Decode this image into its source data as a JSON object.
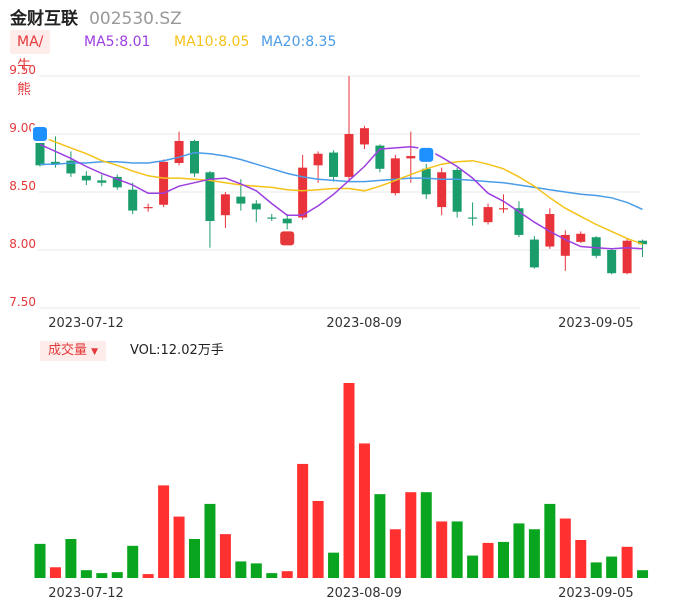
{
  "header": {
    "name": "金财互联",
    "code": "002530.SZ"
  },
  "ma_legend": {
    "tag": "MA/牛熊",
    "ma5": "MA5:8.01",
    "ma10": "MA10:8.05",
    "ma20": "MA20:8.35"
  },
  "volume_legend": {
    "tag": "成交量",
    "value": "VOL:12.02万手"
  },
  "colors": {
    "up": "#e8333a",
    "down": "#1a9c6b",
    "vol_up": "#ff3030",
    "vol_down": "#0aa51f",
    "ma5": "#9d3fe0",
    "ma10": "#f5c218",
    "ma20": "#4a9ce8",
    "grid": "#e8e8e8",
    "ylabel": "#e5383b"
  },
  "chart_data": [
    {
      "type": "candlestick",
      "y_ticks": [
        "9.50",
        "9.00",
        "8.50",
        "8.00",
        "7.50"
      ],
      "ylim": [
        7.5,
        9.5
      ],
      "x_tick_labels": [
        "2023-07-12",
        "2023-08-09",
        "2023-09-05"
      ],
      "x_tick_indices": [
        0,
        18,
        33
      ],
      "ohlc": [
        [
          8.93,
          8.95,
          8.72,
          8.73
        ],
        [
          8.76,
          8.98,
          8.71,
          8.74
        ],
        [
          8.77,
          8.85,
          8.63,
          8.66
        ],
        [
          8.64,
          8.68,
          8.56,
          8.6
        ],
        [
          8.6,
          8.65,
          8.55,
          8.58
        ],
        [
          8.63,
          8.65,
          8.52,
          8.54
        ],
        [
          8.52,
          8.58,
          8.31,
          8.34
        ],
        [
          8.36,
          8.4,
          8.33,
          8.37
        ],
        [
          8.39,
          8.78,
          8.37,
          8.76
        ],
        [
          8.75,
          9.02,
          8.73,
          8.94
        ],
        [
          8.94,
          8.95,
          8.63,
          8.66
        ],
        [
          8.67,
          8.68,
          8.02,
          8.25
        ],
        [
          8.3,
          8.5,
          8.19,
          8.48
        ],
        [
          8.46,
          8.61,
          8.34,
          8.4
        ],
        [
          8.4,
          8.43,
          8.24,
          8.35
        ],
        [
          8.28,
          8.31,
          8.25,
          8.27
        ],
        [
          8.27,
          8.31,
          8.14,
          8.23
        ],
        [
          8.28,
          8.82,
          8.26,
          8.71
        ],
        [
          8.73,
          8.85,
          8.58,
          8.83
        ],
        [
          8.84,
          8.86,
          8.59,
          8.63
        ],
        [
          8.63,
          9.5,
          8.59,
          9.0
        ],
        [
          8.91,
          9.07,
          8.87,
          9.05
        ],
        [
          8.9,
          8.91,
          8.67,
          8.7
        ],
        [
          8.49,
          8.82,
          8.47,
          8.79
        ],
        [
          8.79,
          9.02,
          8.58,
          8.81
        ],
        [
          8.7,
          8.8,
          8.44,
          8.48
        ],
        [
          8.37,
          8.71,
          8.3,
          8.67
        ],
        [
          8.69,
          8.71,
          8.28,
          8.33
        ],
        [
          8.28,
          8.41,
          8.21,
          8.27
        ],
        [
          8.24,
          8.4,
          8.22,
          8.37
        ],
        [
          8.35,
          8.48,
          8.32,
          8.36
        ],
        [
          8.36,
          8.42,
          8.11,
          8.13
        ],
        [
          8.09,
          8.12,
          7.84,
          7.85
        ],
        [
          8.03,
          8.36,
          8.01,
          8.31
        ],
        [
          7.95,
          8.17,
          7.82,
          8.13
        ],
        [
          8.07,
          8.16,
          8.06,
          8.14
        ],
        [
          8.11,
          8.12,
          7.93,
          7.95
        ],
        [
          8.0,
          8.01,
          7.79,
          7.8
        ],
        [
          7.8,
          8.1,
          7.79,
          8.08
        ],
        [
          8.08,
          8.09,
          7.94,
          8.05
        ]
      ],
      "ma5": [
        8.91,
        8.85,
        8.79,
        8.72,
        8.66,
        8.61,
        8.56,
        8.49,
        8.49,
        8.55,
        8.58,
        8.61,
        8.62,
        8.57,
        8.51,
        8.4,
        8.3,
        8.3,
        8.38,
        8.48,
        8.6,
        8.72,
        8.87,
        8.88,
        8.89,
        8.87,
        8.8,
        8.72,
        8.62,
        8.49,
        8.42,
        8.33,
        8.24,
        8.16,
        8.09,
        8.03,
        8.02,
        8.01,
        8.02,
        8.01
      ],
      "ma10": [
        8.98,
        8.93,
        8.88,
        8.83,
        8.77,
        8.73,
        8.68,
        8.64,
        8.62,
        8.62,
        8.61,
        8.6,
        8.58,
        8.56,
        8.55,
        8.54,
        8.52,
        8.51,
        8.52,
        8.53,
        8.53,
        8.51,
        8.55,
        8.6,
        8.65,
        8.7,
        8.74,
        8.76,
        8.77,
        8.74,
        8.7,
        8.63,
        8.55,
        8.45,
        8.36,
        8.29,
        8.22,
        8.16,
        8.1,
        8.05
      ],
      "ma20": [
        8.74,
        8.74,
        8.75,
        8.75,
        8.76,
        8.76,
        8.75,
        8.75,
        8.77,
        8.8,
        8.84,
        8.83,
        8.81,
        8.78,
        8.74,
        8.7,
        8.66,
        8.63,
        8.61,
        8.6,
        8.59,
        8.59,
        8.6,
        8.61,
        8.62,
        8.62,
        8.61,
        8.61,
        8.6,
        8.59,
        8.58,
        8.56,
        8.54,
        8.52,
        8.5,
        8.48,
        8.47,
        8.45,
        8.41,
        8.35
      ],
      "markers": [
        {
          "index": 0,
          "price": 9.0,
          "label": "B",
          "color": "#1e90ff"
        },
        {
          "index": 16,
          "price": 8.1,
          "label": "S",
          "color": "#e5383b"
        },
        {
          "index": 25,
          "price": 8.82,
          "label": "B",
          "color": "#1e90ff"
        }
      ]
    },
    {
      "type": "bar",
      "name": "成交量",
      "ylim": [
        0,
        200
      ],
      "x_tick_labels": [
        "2023-07-12",
        "2023-08-09",
        "2023-09-05"
      ],
      "x_tick_indices": [
        0,
        18,
        33
      ],
      "values": [
        35,
        11,
        40,
        8,
        5,
        6,
        33,
        4,
        95,
        63,
        40,
        76,
        45,
        17,
        15,
        5,
        7,
        117,
        79,
        26,
        200,
        138,
        86,
        50,
        88,
        88,
        58,
        58,
        23,
        36,
        37,
        56,
        50,
        76,
        61,
        39,
        16,
        22,
        32,
        8
      ],
      "up": [
        false,
        true,
        false,
        false,
        false,
        false,
        false,
        true,
        true,
        true,
        false,
        false,
        true,
        false,
        false,
        false,
        true,
        true,
        true,
        false,
        true,
        true,
        false,
        true,
        true,
        false,
        true,
        false,
        false,
        true,
        false,
        false,
        false,
        false,
        true,
        true,
        false,
        false,
        true,
        false
      ]
    }
  ]
}
